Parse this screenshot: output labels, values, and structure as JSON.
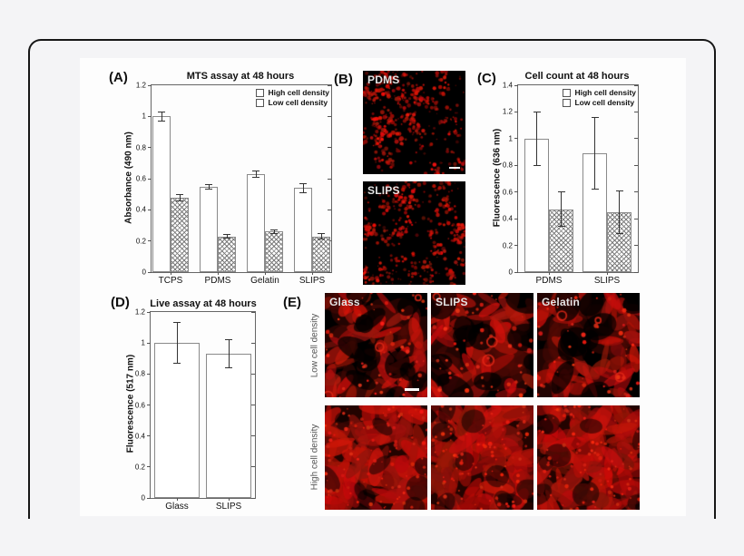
{
  "figure": {
    "background": "#f4f4f6",
    "panel_bg": "#fdfdfd",
    "frame_color": "#161616",
    "cell_red": "#bb1505",
    "micrograph_bg": "#000000"
  },
  "panels": {
    "a": {
      "label": "(A)"
    },
    "b": {
      "label": "(B)",
      "micrographs": [
        {
          "label": "PDMS",
          "has_scalebar": true
        },
        {
          "label": "SLIPS",
          "has_scalebar": false
        }
      ]
    },
    "c": {
      "label": "(C)"
    },
    "d": {
      "label": "(D)"
    },
    "e": {
      "label": "(E)",
      "row_labels": [
        "Low cell density",
        "High cell density"
      ],
      "column_labels": [
        "Glass",
        "SLIPS",
        "Gelatin"
      ]
    }
  },
  "chart_data": [
    {
      "id": "mts",
      "type": "bar",
      "title": "MTS assay at 48 hours",
      "xlabel": "",
      "ylabel": "Absorbance (490 nm)",
      "ylim": [
        0,
        1.2
      ],
      "ytick_step": 0.2,
      "grid": false,
      "legend": true,
      "legend_position": "top-right",
      "categories": [
        "TCPS",
        "PDMS",
        "Gelatin",
        "SLIPS"
      ],
      "series": [
        {
          "name": "High cell density",
          "style": "plain",
          "values": [
            1.0,
            0.55,
            0.63,
            0.54
          ],
          "errors": [
            0.03,
            0.015,
            0.02,
            0.03
          ]
        },
        {
          "name": "Low cell density",
          "style": "hatched",
          "values": [
            0.48,
            0.23,
            0.26,
            0.23
          ],
          "errors": [
            0.02,
            0.01,
            0.012,
            0.02
          ]
        }
      ]
    },
    {
      "id": "cellcount",
      "type": "bar",
      "title": "Cell count at 48 hours",
      "xlabel": "",
      "ylabel": "Fluorescence (636 nm)",
      "ylim": [
        0,
        1.4
      ],
      "ytick_step": 0.2,
      "grid": false,
      "legend": true,
      "legend_position": "top-right",
      "categories": [
        "PDMS",
        "SLIPS"
      ],
      "series": [
        {
          "name": "High cell density",
          "style": "plain",
          "values": [
            1.0,
            0.89
          ],
          "errors": [
            0.2,
            0.27
          ]
        },
        {
          "name": "Low cell density",
          "style": "hatched",
          "values": [
            0.47,
            0.45
          ],
          "errors": [
            0.13,
            0.16
          ]
        }
      ]
    },
    {
      "id": "live",
      "type": "bar",
      "title": "Live assay at 48 hours",
      "xlabel": "",
      "ylabel": "Fluorescence (517 nm)",
      "ylim": [
        0,
        1.2
      ],
      "ytick_step": 0.2,
      "grid": false,
      "legend": false,
      "categories": [
        "Glass",
        "SLIPS"
      ],
      "series": [
        {
          "name": "High cell density",
          "style": "plain",
          "values": [
            1.0,
            0.93
          ],
          "errors": [
            0.13,
            0.09
          ]
        }
      ]
    }
  ]
}
